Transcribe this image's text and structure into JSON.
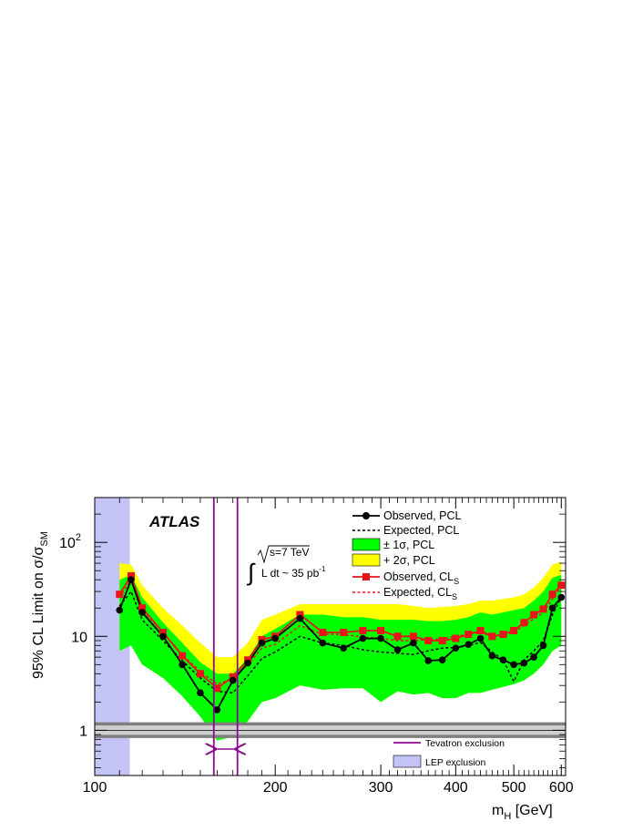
{
  "chart_data": {
    "type": "line",
    "title": "ATLAS",
    "xlabel_main": "m",
    "xlabel_sub": "H",
    "xlabel_unit": " [GeV]",
    "ylabel_main": "95% CL Limit on σ/σ",
    "ylabel_sub": "SM",
    "x_scale": "log",
    "y_scale": "log",
    "xlim": [
      100,
      610
    ],
    "ylim": [
      0.33,
      300
    ],
    "x_ticks": [
      {
        "value": 100,
        "label": "100"
      },
      {
        "value": 200,
        "label": "200"
      },
      {
        "value": 300,
        "label": "300"
      },
      {
        "value": 400,
        "label": "400"
      },
      {
        "value": 500,
        "label": "500"
      },
      {
        "value": 600,
        "label": "600"
      }
    ],
    "y_ticks": [
      {
        "value": 1,
        "base": "1",
        "exp": ""
      },
      {
        "value": 10,
        "base": "10",
        "exp": ""
      },
      {
        "value": 100,
        "base": "10",
        "exp": "2"
      }
    ],
    "annotation": {
      "sqrt_s": "s=7 TeV",
      "lumi": "L dt ~ 35 pb",
      "lumi_exp": "-1"
    },
    "x": [
      110,
      115,
      120,
      130,
      140,
      150,
      160,
      170,
      180,
      190,
      200,
      220,
      240,
      260,
      280,
      300,
      320,
      340,
      360,
      380,
      400,
      420,
      440,
      460,
      480,
      500,
      520,
      540,
      560,
      580,
      600
    ],
    "series": [
      {
        "name": "Observed, PCL",
        "style": "solid-marker-circle",
        "color": "#000000",
        "values": [
          19,
          40,
          18,
          10,
          5.0,
          2.5,
          1.65,
          3.4,
          5.2,
          8.5,
          9.5,
          15.5,
          8.5,
          7.5,
          9.5,
          9.5,
          7.2,
          8.5,
          5.5,
          5.6,
          7.5,
          8.2,
          9.5,
          6.2,
          5.6,
          5.0,
          5.2,
          6.0,
          8.0,
          20,
          26
        ]
      },
      {
        "name": "Expected, PCL",
        "style": "dashed",
        "color": "#000000",
        "values": [
          21,
          30,
          15,
          9,
          5.5,
          3.6,
          2.6,
          2.5,
          3.8,
          5.8,
          6.8,
          10,
          8.5,
          8,
          7.2,
          6.8,
          6.6,
          6.4,
          7,
          7.5,
          7.6,
          8.0,
          8.6,
          6.8,
          5.6,
          3.3,
          5.6,
          7,
          9,
          17,
          26
        ]
      },
      {
        "name": "Observed, CL",
        "name_sub": "S",
        "style": "solid-marker-square",
        "color": "#e8151a",
        "values": [
          28,
          44,
          20,
          11,
          6.2,
          4.0,
          2.8,
          3.7,
          5.6,
          9.2,
          10,
          17,
          11,
          11,
          11.5,
          11.5,
          10,
          10,
          9,
          9,
          9.5,
          10.5,
          11.5,
          10,
          10.5,
          11.5,
          14,
          17,
          19.5,
          28,
          35
        ]
      },
      {
        "name": "Expected, CL",
        "name_sub": "S",
        "style": "dashed",
        "color": "#e8151a",
        "values": [
          26,
          40,
          19,
          11,
          6.4,
          4.2,
          3.1,
          3.5,
          5.0,
          7.5,
          8.2,
          13,
          10.5,
          10.5,
          9.8,
          9.5,
          9,
          9,
          9.2,
          9.4,
          10,
          10.5,
          11,
          10,
          10.3,
          11,
          13,
          15.5,
          18,
          25,
          34
        ]
      }
    ],
    "bands": [
      {
        "name": "+ 2σ, PCL",
        "color": "#ffff00",
        "upper": [
          60,
          58,
          35,
          20,
          13,
          8.5,
          6,
          6.0,
          8.5,
          15,
          17,
          22,
          22,
          22,
          22,
          22,
          22,
          21,
          20,
          20.5,
          21,
          22,
          24,
          24,
          25,
          26,
          28,
          33,
          42,
          58,
          62
        ]
      },
      {
        "name": "± 1σ, PCL",
        "color": "#00ff00",
        "upper": [
          40,
          45,
          26,
          14,
          8.5,
          5.3,
          4.0,
          4.0,
          5.8,
          10,
          12,
          17,
          17,
          16,
          16,
          15,
          15,
          15,
          14.5,
          14.5,
          15,
          16,
          18,
          17,
          18,
          19,
          20,
          24,
          30,
          42,
          45
        ],
        "lower": [
          7,
          8,
          5,
          3.6,
          2.3,
          1.4,
          0.78,
          0.85,
          1.25,
          2.0,
          2.2,
          3.0,
          2.7,
          2.8,
          2.8,
          2.0,
          2.6,
          2.4,
          2.5,
          2.2,
          2.2,
          2.5,
          2.5,
          2.7,
          2.9,
          3.1,
          3.4,
          4.0,
          5.0,
          7.0,
          8.0
        ]
      }
    ],
    "exclusions": [
      {
        "name": "LEP exclusion",
        "color": "#c3c3f5",
        "xmin": 100,
        "xmax": 114.4
      },
      {
        "name": "Tevatron exclusion",
        "color": "#8b0a8b",
        "xmin": 158,
        "xmax": 173
      },
      {
        "name": "Tevatron band",
        "color": "#7f7f7f",
        "level": 1.0,
        "low": 0.86,
        "high": 1.17
      }
    ],
    "legend_position": "top-right",
    "grid": false
  }
}
